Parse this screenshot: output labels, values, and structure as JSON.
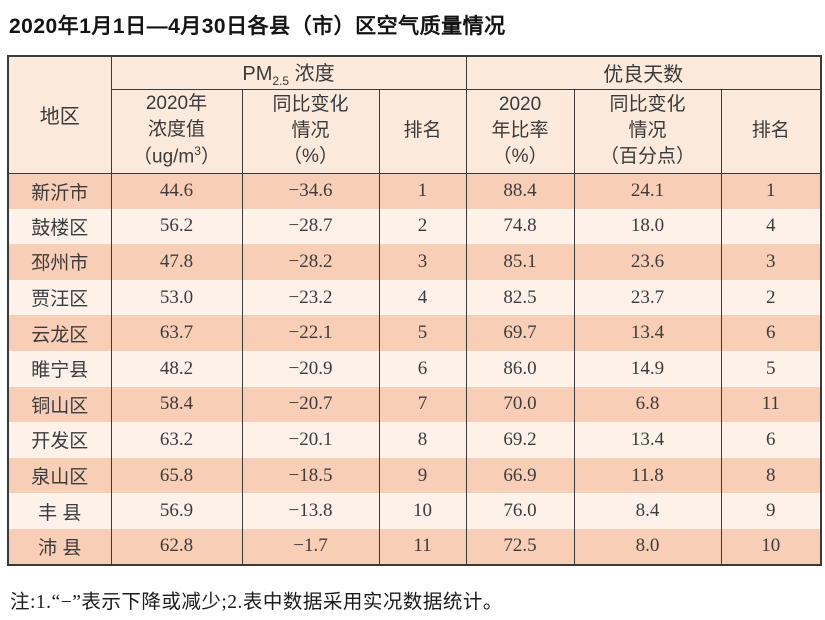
{
  "title": "2020年1月1日—4月30日各县（市）区空气质量情况",
  "colors": {
    "row_dark": "#f8ceb6",
    "row_light": "#fdf1e9",
    "header_bg": "#fbe9db",
    "border": "#3a3a3a",
    "text": "#3f3f3f",
    "title": "#141414",
    "page_bg": "#ffffff"
  },
  "table": {
    "header": {
      "region": "地区",
      "pm_group": {
        "prefix": "PM",
        "sub": "2.5",
        "suffix": " 浓度"
      },
      "days_group": "优良天数",
      "conc": {
        "line1": "2020年",
        "line2": "浓度值",
        "line3_pre": "（ug/m",
        "line3_sup": "3",
        "line3_post": "）"
      },
      "pm_change": [
        "同比变化",
        "情况",
        "（%）"
      ],
      "pm_rank": "排名",
      "ratio": [
        "2020",
        "年比率",
        "（%）"
      ],
      "days_change": [
        "同比变化",
        "情况",
        "（百分点）"
      ],
      "days_rank": "排名"
    },
    "row_keys": [
      "region",
      "pm",
      "pm_chg",
      "pm_rank",
      "days",
      "days_chg",
      "days_rank"
    ],
    "rows": [
      {
        "region": "新沂市",
        "pm": "44.6",
        "pm_chg": "−34.6",
        "pm_rank": "1",
        "days": "88.4",
        "days_chg": "24.1",
        "days_rank": "1"
      },
      {
        "region": "鼓楼区",
        "pm": "56.2",
        "pm_chg": "−28.7",
        "pm_rank": "2",
        "days": "74.8",
        "days_chg": "18.0",
        "days_rank": "4"
      },
      {
        "region": "邳州市",
        "pm": "47.8",
        "pm_chg": "−28.2",
        "pm_rank": "3",
        "days": "85.1",
        "days_chg": "23.6",
        "days_rank": "3"
      },
      {
        "region": "贾汪区",
        "pm": "53.0",
        "pm_chg": "−23.2",
        "pm_rank": "4",
        "days": "82.5",
        "days_chg": "23.7",
        "days_rank": "2"
      },
      {
        "region": "云龙区",
        "pm": "63.7",
        "pm_chg": "−22.1",
        "pm_rank": "5",
        "days": "69.7",
        "days_chg": "13.4",
        "days_rank": "6"
      },
      {
        "region": "睢宁县",
        "pm": "48.2",
        "pm_chg": "−20.9",
        "pm_rank": "6",
        "days": "86.0",
        "days_chg": "14.9",
        "days_rank": "5"
      },
      {
        "region": "铜山区",
        "pm": "58.4",
        "pm_chg": "−20.7",
        "pm_rank": "7",
        "days": "70.0",
        "days_chg": "6.8",
        "days_rank": "11"
      },
      {
        "region": "开发区",
        "pm": "63.2",
        "pm_chg": "−20.1",
        "pm_rank": "8",
        "days": "69.2",
        "days_chg": "13.4",
        "days_rank": "6"
      },
      {
        "region": "泉山区",
        "pm": "65.8",
        "pm_chg": "−18.5",
        "pm_rank": "9",
        "days": "66.9",
        "days_chg": "11.8",
        "days_rank": "8"
      },
      {
        "region": "丰 县",
        "pm": "56.9",
        "pm_chg": "−13.8",
        "pm_rank": "10",
        "days": "76.0",
        "days_chg": "8.4",
        "days_rank": "9"
      },
      {
        "region": "沛 县",
        "pm": "62.8",
        "pm_chg": "−1.7",
        "pm_rank": "11",
        "days": "72.5",
        "days_chg": "8.0",
        "days_rank": "10"
      }
    ]
  },
  "footnote": "注:1.“−”表示下降或减少;2.表中数据采用实况数据统计。"
}
